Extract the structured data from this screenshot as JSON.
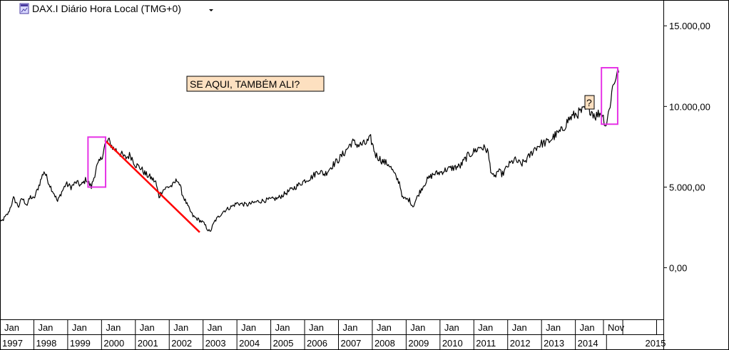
{
  "window": {
    "title": "DAX.I Diário Hora Local (TMG+0)",
    "menu_icon": "chevron-down-icon",
    "instrument_icon": "cfd-chart-icon"
  },
  "colors": {
    "background": "#ffffff",
    "price_line": "#000000",
    "trend_line": "#ff0000",
    "highlight_box": "#e633e6",
    "annotation_fill": "#fde0c0",
    "grid": "#000000"
  },
  "annotations": {
    "question_text": "SE AQUI, TAMBÉM ALI?",
    "question_mark": "?"
  },
  "chart_data": {
    "type": "line",
    "title": "DAX.I Diário Hora Local (TMG+0)",
    "y_axis": {
      "ticks": [
        15000,
        10000,
        5000,
        0
      ],
      "tick_labels": [
        "15.000,00",
        "10.000,00",
        "5.000,00",
        "0,00"
      ],
      "ylim": [
        -3200,
        16600
      ],
      "position": "right"
    },
    "x_axis": {
      "xlim": [
        1997.0,
        2016.6
      ],
      "month_labels": [
        "Jan",
        "Jan",
        "Jan",
        "Jan",
        "Jan",
        "Jan",
        "Jan",
        "Jan",
        "Jan",
        "Jan",
        "Jan",
        "Jan",
        "Jan",
        "Jan",
        "Jan",
        "Jan",
        "Jan",
        "Jan",
        "Nov"
      ],
      "month_label_positions": [
        1997.0,
        1998.0,
        1999.0,
        2000.0,
        2001.0,
        2002.0,
        2003.0,
        2004.0,
        2005.0,
        2006.0,
        2007.0,
        2008.0,
        2009.0,
        2010.0,
        2011.0,
        2012.0,
        2013.0,
        2014.0,
        2014.83
      ],
      "year_labels": [
        "1997",
        "1998",
        "1999",
        "2000",
        "2001",
        "2002",
        "2003",
        "2004",
        "2005",
        "2006",
        "2007",
        "2008",
        "2009",
        "2010",
        "2011",
        "2012",
        "2013",
        "2014",
        "2015"
      ],
      "year_label_positions": [
        1997.0,
        1998.0,
        1999.0,
        2000.0,
        2001.0,
        2002.0,
        2003.0,
        2004.0,
        2005.0,
        2006.0,
        2007.0,
        2008.0,
        2009.0,
        2010.0,
        2011.0,
        2012.0,
        2013.0,
        2014.0,
        2016.0
      ]
    },
    "series": [
      {
        "x": [
          1996.95,
          1997.1,
          1997.25,
          1997.4,
          1997.55,
          1997.65,
          1997.8,
          1997.9,
          1998.0,
          1998.15,
          1998.3,
          1998.5,
          1998.6,
          1998.7,
          1998.8,
          1998.95,
          1999.1,
          1999.25,
          1999.4,
          1999.55,
          1999.7,
          1999.85,
          2000.0,
          2000.1,
          2000.2,
          2000.35,
          2000.5,
          2000.7,
          2000.85,
          2001.0,
          2001.15,
          2001.3,
          2001.45,
          2001.6,
          2001.7,
          2001.8,
          2001.95,
          2002.1,
          2002.25,
          2002.4,
          2002.55,
          2002.7,
          2002.85,
          2003.0,
          2003.1,
          2003.2,
          2003.35,
          2003.6,
          2003.85,
          2004.0,
          2004.3,
          2004.6,
          2004.9,
          2005.2,
          2005.5,
          2005.8,
          2006.0,
          2006.2,
          2006.4,
          2006.6,
          2006.8,
          2007.0,
          2007.2,
          2007.4,
          2007.6,
          2007.8,
          2007.95,
          2008.1,
          2008.3,
          2008.5,
          2008.7,
          2008.8,
          2008.9,
          2009.1,
          2009.2,
          2009.4,
          2009.6,
          2009.8,
          2010.0,
          2010.2,
          2010.4,
          2010.6,
          2010.8,
          2011.0,
          2011.2,
          2011.4,
          2011.5,
          2011.6,
          2011.7,
          2011.85,
          2012.0,
          2012.2,
          2012.4,
          2012.6,
          2012.8,
          2013.0,
          2013.2,
          2013.4,
          2013.6,
          2013.8,
          2014.0,
          2014.2,
          2014.4,
          2014.6,
          2014.7,
          2014.8,
          2014.9,
          2015.0,
          2015.1,
          2015.2,
          2015.28
        ],
        "y": [
          2650,
          3000,
          3400,
          4300,
          3800,
          4300,
          3900,
          4400,
          4250,
          5100,
          6000,
          5000,
          4600,
          4100,
          4600,
          5200,
          5000,
          5300,
          5100,
          5500,
          5000,
          6200,
          6800,
          7600,
          7900,
          7400,
          7200,
          6800,
          7000,
          6400,
          6200,
          5800,
          5600,
          5300,
          4400,
          4800,
          5000,
          5100,
          5500,
          4500,
          3800,
          3200,
          3000,
          2800,
          2500,
          2200,
          2900,
          3500,
          3800,
          4000,
          3900,
          4100,
          4200,
          4300,
          4700,
          5100,
          5400,
          5600,
          6000,
          5800,
          6300,
          6700,
          7200,
          7800,
          7600,
          7700,
          8000,
          7000,
          6600,
          6400,
          5600,
          5300,
          4300,
          4200,
          3800,
          4700,
          5400,
          5800,
          5900,
          6100,
          6200,
          6300,
          6900,
          7200,
          7500,
          7300,
          6100,
          5500,
          6000,
          5800,
          6300,
          6700,
          6400,
          6800,
          7400,
          7700,
          7800,
          8200,
          8500,
          9200,
          9500,
          9700,
          9900,
          9400,
          9600,
          9500,
          8800,
          9800,
          11200,
          11900,
          12100
        ]
      }
    ],
    "trend_line": {
      "x": [
        2000.1,
        2002.9
      ],
      "y": [
        7900,
        2200
      ]
    },
    "highlight_boxes": [
      {
        "x": [
          1999.6,
          2000.12
        ],
        "y": [
          5000,
          8100
        ]
      },
      {
        "x": [
          2014.77,
          2015.25
        ],
        "y": [
          8900,
          12400
        ]
      }
    ]
  }
}
